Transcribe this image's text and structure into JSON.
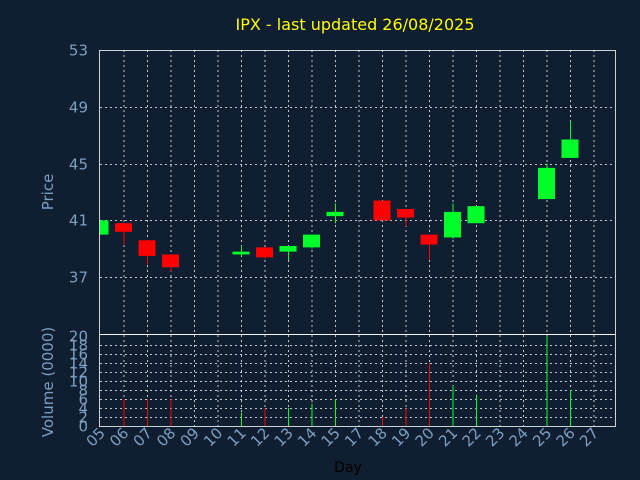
{
  "chart_data": {
    "type": "candlestick",
    "title": "IPX - last updated 26/08/2025",
    "price_axis": {
      "label": "Price",
      "ticks": [
        53,
        49,
        45,
        41,
        37
      ],
      "range": [
        33,
        53
      ]
    },
    "volume_axis": {
      "label": "Volume (0000)",
      "ticks": [
        20,
        18,
        16,
        14,
        12,
        10,
        8,
        6,
        4,
        2,
        0
      ],
      "range": [
        0,
        20
      ]
    },
    "x_axis": {
      "label": "Day",
      "ticks": [
        "05",
        "06",
        "07",
        "08",
        "09",
        "10",
        "11",
        "12",
        "13",
        "14",
        "15",
        "17",
        "18",
        "19",
        "20",
        "21",
        "22",
        "23",
        "24",
        "25",
        "26",
        "27"
      ]
    },
    "candles": [
      {
        "x": "05",
        "open": 40.0,
        "close": 41.0,
        "high": 41.0,
        "low": 40.0,
        "volume": 0
      },
      {
        "x": "06",
        "open": 40.8,
        "close": 40.2,
        "high": 40.8,
        "low": 39.3,
        "volume": 6
      },
      {
        "x": "07",
        "open": 39.6,
        "close": 38.5,
        "high": 39.6,
        "low": 37.9,
        "volume": 6
      },
      {
        "x": "08",
        "open": 38.6,
        "close": 37.7,
        "high": 38.6,
        "low": 37.4,
        "volume": 6
      },
      {
        "x": "11",
        "open": 38.6,
        "close": 38.8,
        "high": 39.2,
        "low": 38.5,
        "volume": 3
      },
      {
        "x": "12",
        "open": 39.1,
        "close": 38.4,
        "high": 39.1,
        "low": 38.3,
        "volume": 4
      },
      {
        "x": "13",
        "open": 38.8,
        "close": 39.2,
        "high": 39.2,
        "low": 38.2,
        "volume": 4
      },
      {
        "x": "14",
        "open": 39.1,
        "close": 40.0,
        "high": 40.0,
        "low": 39.0,
        "volume": 5
      },
      {
        "x": "15",
        "open": 41.3,
        "close": 41.6,
        "high": 42.2,
        "low": 40.8,
        "volume": 6
      },
      {
        "x": "18",
        "open": 42.4,
        "close": 41.0,
        "high": 42.4,
        "low": 41.0,
        "volume": 2
      },
      {
        "x": "19",
        "open": 41.8,
        "close": 41.2,
        "high": 41.8,
        "low": 40.6,
        "volume": 4
      },
      {
        "x": "20",
        "open": 40.0,
        "close": 39.3,
        "high": 40.0,
        "low": 38.2,
        "volume": 14
      },
      {
        "x": "21",
        "open": 39.8,
        "close": 41.6,
        "high": 42.2,
        "low": 39.7,
        "volume": 9
      },
      {
        "x": "22",
        "open": 40.8,
        "close": 42.0,
        "high": 42.0,
        "low": 40.8,
        "volume": 7
      },
      {
        "x": "25",
        "open": 42.5,
        "close": 44.7,
        "high": 45.0,
        "low": 42.5,
        "volume": 20
      },
      {
        "x": "26",
        "open": 45.4,
        "close": 46.7,
        "high": 48.0,
        "low": 45.4,
        "volume": 8
      }
    ],
    "up_color": "#00ff2a",
    "down_color": "#ff0000",
    "grid": true
  }
}
